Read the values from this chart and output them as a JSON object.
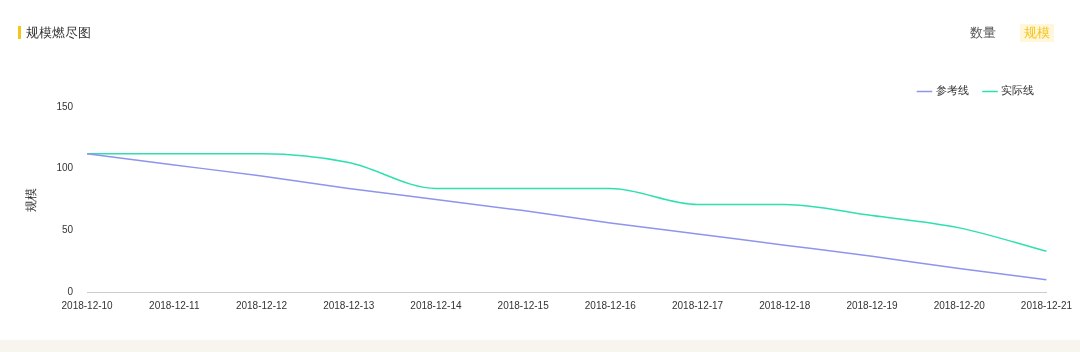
{
  "chart_data": {
    "type": "line",
    "title": "规模燃尽图",
    "ylabel": "规模",
    "annotations": [
      "数量",
      "规模"
    ],
    "categories": [
      "2018-12-10",
      "2018-12-11",
      "2018-12-12",
      "2018-12-13",
      "2018-12-14",
      "2018-12-15",
      "2018-12-16",
      "2018-12-17",
      "2018-12-18",
      "2018-12-19",
      "2018-12-20",
      "2018-12-21"
    ],
    "series": [
      {
        "name": "参考线",
        "color": "#8f94ec",
        "values": [
          112,
          103,
          94,
          84,
          75,
          66,
          56,
          47,
          38,
          29,
          19,
          10
        ]
      },
      {
        "name": "实际线",
        "color": "#2ee0b0",
        "values": [
          112,
          112,
          112,
          105,
          84,
          84,
          84,
          71,
          71,
          62,
          52,
          33
        ]
      }
    ],
    "ylim": [
      0,
      150
    ],
    "yticks": [
      0,
      50,
      100,
      150
    ],
    "grid": false,
    "legend": "top right",
    "marker": "none",
    "line_style": "solid"
  }
}
